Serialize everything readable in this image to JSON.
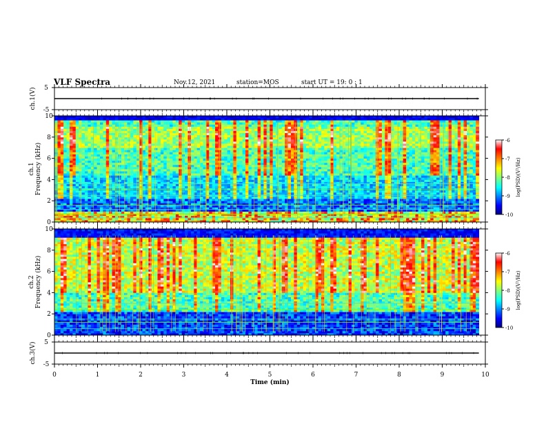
{
  "header": {
    "title": "VLF Spectra",
    "date": "Nov.12, 2021",
    "station": "station=MOS",
    "start": "start  UT =   19: 0  : 1"
  },
  "chart_data": [
    {
      "type": "line",
      "panel": "ch1-waveform",
      "ylabel": "ch.1(V)",
      "ylim": [
        -5,
        5
      ],
      "yticks": [
        5,
        -5
      ],
      "xlim": [
        0,
        10
      ],
      "series": [
        {
          "values_description_free": true,
          "x": [
            0,
            9.85
          ],
          "values": [
            0,
            0
          ]
        }
      ]
    },
    {
      "type": "heatmap",
      "panel": "ch1-spectrogram",
      "ylabel": "ch.1\nFrequency (kHz)",
      "ylabel_line1": "ch.1",
      "ylabel_line2": "Frequency (kHz)",
      "ylim": [
        0,
        10
      ],
      "yticks": [
        0,
        2,
        4,
        6,
        8,
        10
      ],
      "xlim": [
        0,
        10
      ],
      "data_end_min": 9.85,
      "colorbar": {
        "label": "log(PSD)(V²/Hz)",
        "range": [
          -10,
          -6
        ],
        "ticks": [
          "-6",
          "-7",
          "-8",
          "-9",
          "-10"
        ]
      }
    },
    {
      "type": "heatmap",
      "panel": "ch2-spectrogram",
      "ylabel_line1": "ch.2",
      "ylabel_line2": "Frequency (kHz)",
      "ylim": [
        0,
        10
      ],
      "yticks": [
        0,
        2,
        4,
        6,
        8,
        10
      ],
      "xlim": [
        0,
        10
      ],
      "data_end_min": 9.85,
      "colorbar": {
        "label": "log(PSD)(V²/Hz)",
        "range": [
          -10,
          -6
        ],
        "ticks": [
          "-6",
          "-7",
          "-8",
          "-9",
          "-10"
        ]
      }
    },
    {
      "type": "line",
      "panel": "ch3-waveform",
      "ylabel": "ch.3(V)",
      "ylim": [
        -5,
        5
      ],
      "yticks": [
        5,
        -5
      ],
      "xlim": [
        0,
        10
      ],
      "xlabel": "Time  (min)",
      "xticks": [
        "0",
        "1",
        "2",
        "3",
        "4",
        "5",
        "6",
        "7",
        "8",
        "9",
        "10"
      ],
      "series": [
        {
          "x": [
            0,
            9.85
          ],
          "values": [
            0,
            0
          ]
        }
      ]
    }
  ]
}
